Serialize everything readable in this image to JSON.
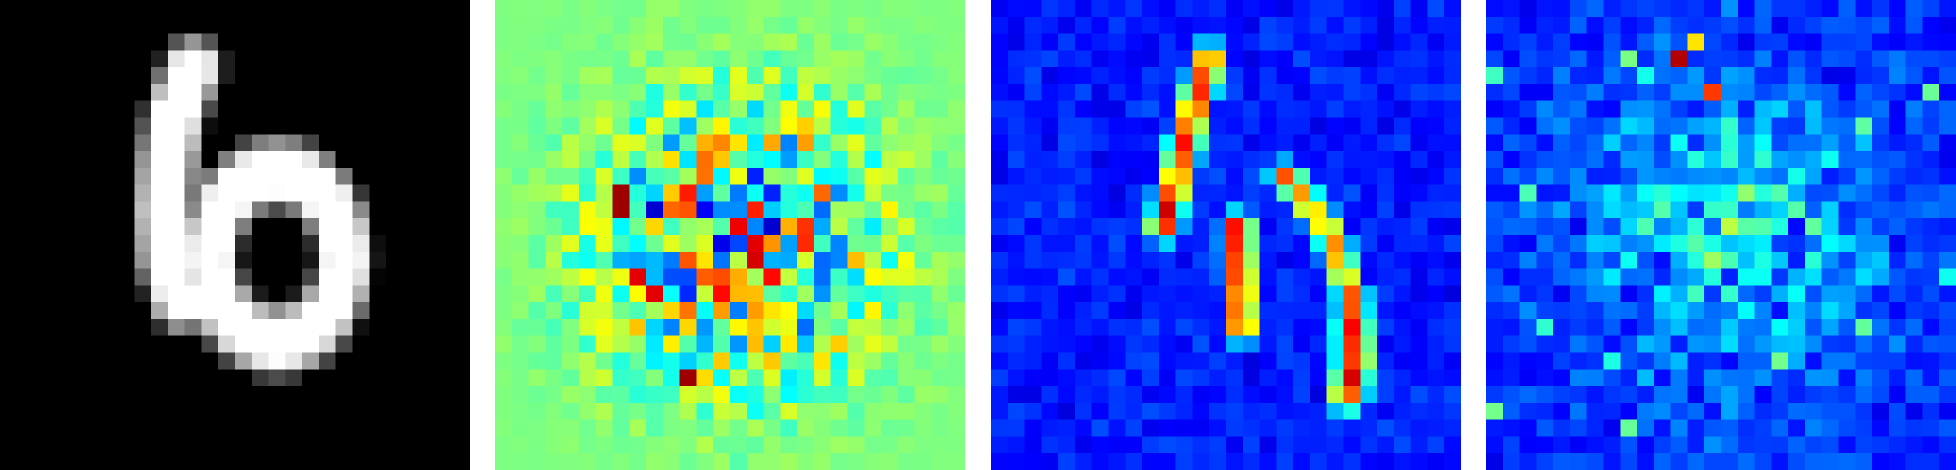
{
  "figure": {
    "grid_size": 28,
    "background": "#ffffff",
    "panels": [
      {
        "kind": "input-digit",
        "colormap": "gray"
      },
      {
        "kind": "signed-attribution-map",
        "colormap": "jet"
      },
      {
        "kind": "positive-attribution-map",
        "colormap": "jet"
      },
      {
        "kind": "noisy-attribution-map",
        "colormap": "jet"
      }
    ]
  }
}
